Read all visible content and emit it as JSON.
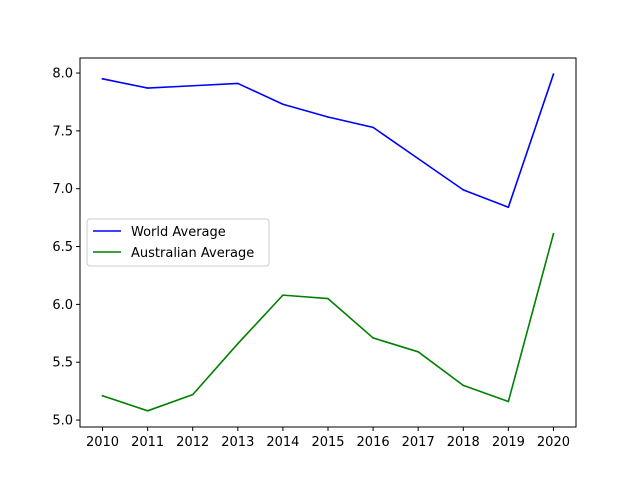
{
  "chart_data": {
    "type": "line",
    "title": "",
    "xlabel": "",
    "ylabel": "",
    "x": [
      2010,
      2011,
      2012,
      2013,
      2014,
      2015,
      2016,
      2017,
      2018,
      2019,
      2020
    ],
    "x_tick_labels": [
      "2010",
      "2011",
      "2012",
      "2013",
      "2014",
      "2015",
      "2016",
      "2017",
      "2018",
      "2019",
      "2020"
    ],
    "y_ticks": [
      5.0,
      5.5,
      6.0,
      6.5,
      7.0,
      7.5,
      8.0
    ],
    "y_tick_labels": [
      "5.0",
      "5.5",
      "6.0",
      "6.5",
      "7.0",
      "7.5",
      "8.0"
    ],
    "xlim": [
      2009.5,
      2020.5
    ],
    "ylim": [
      4.94,
      8.13
    ],
    "grid": false,
    "legend_position": "center-left",
    "series": [
      {
        "name": "World Average",
        "color": "#0000ff",
        "values": [
          7.95,
          7.87,
          7.89,
          7.91,
          7.73,
          7.62,
          7.53,
          7.26,
          6.99,
          6.84,
          7.99
        ]
      },
      {
        "name": "Australian Average",
        "color": "#008000",
        "values": [
          5.21,
          5.08,
          5.22,
          5.66,
          6.08,
          6.05,
          5.71,
          5.59,
          5.3,
          5.16,
          6.61
        ]
      }
    ]
  }
}
